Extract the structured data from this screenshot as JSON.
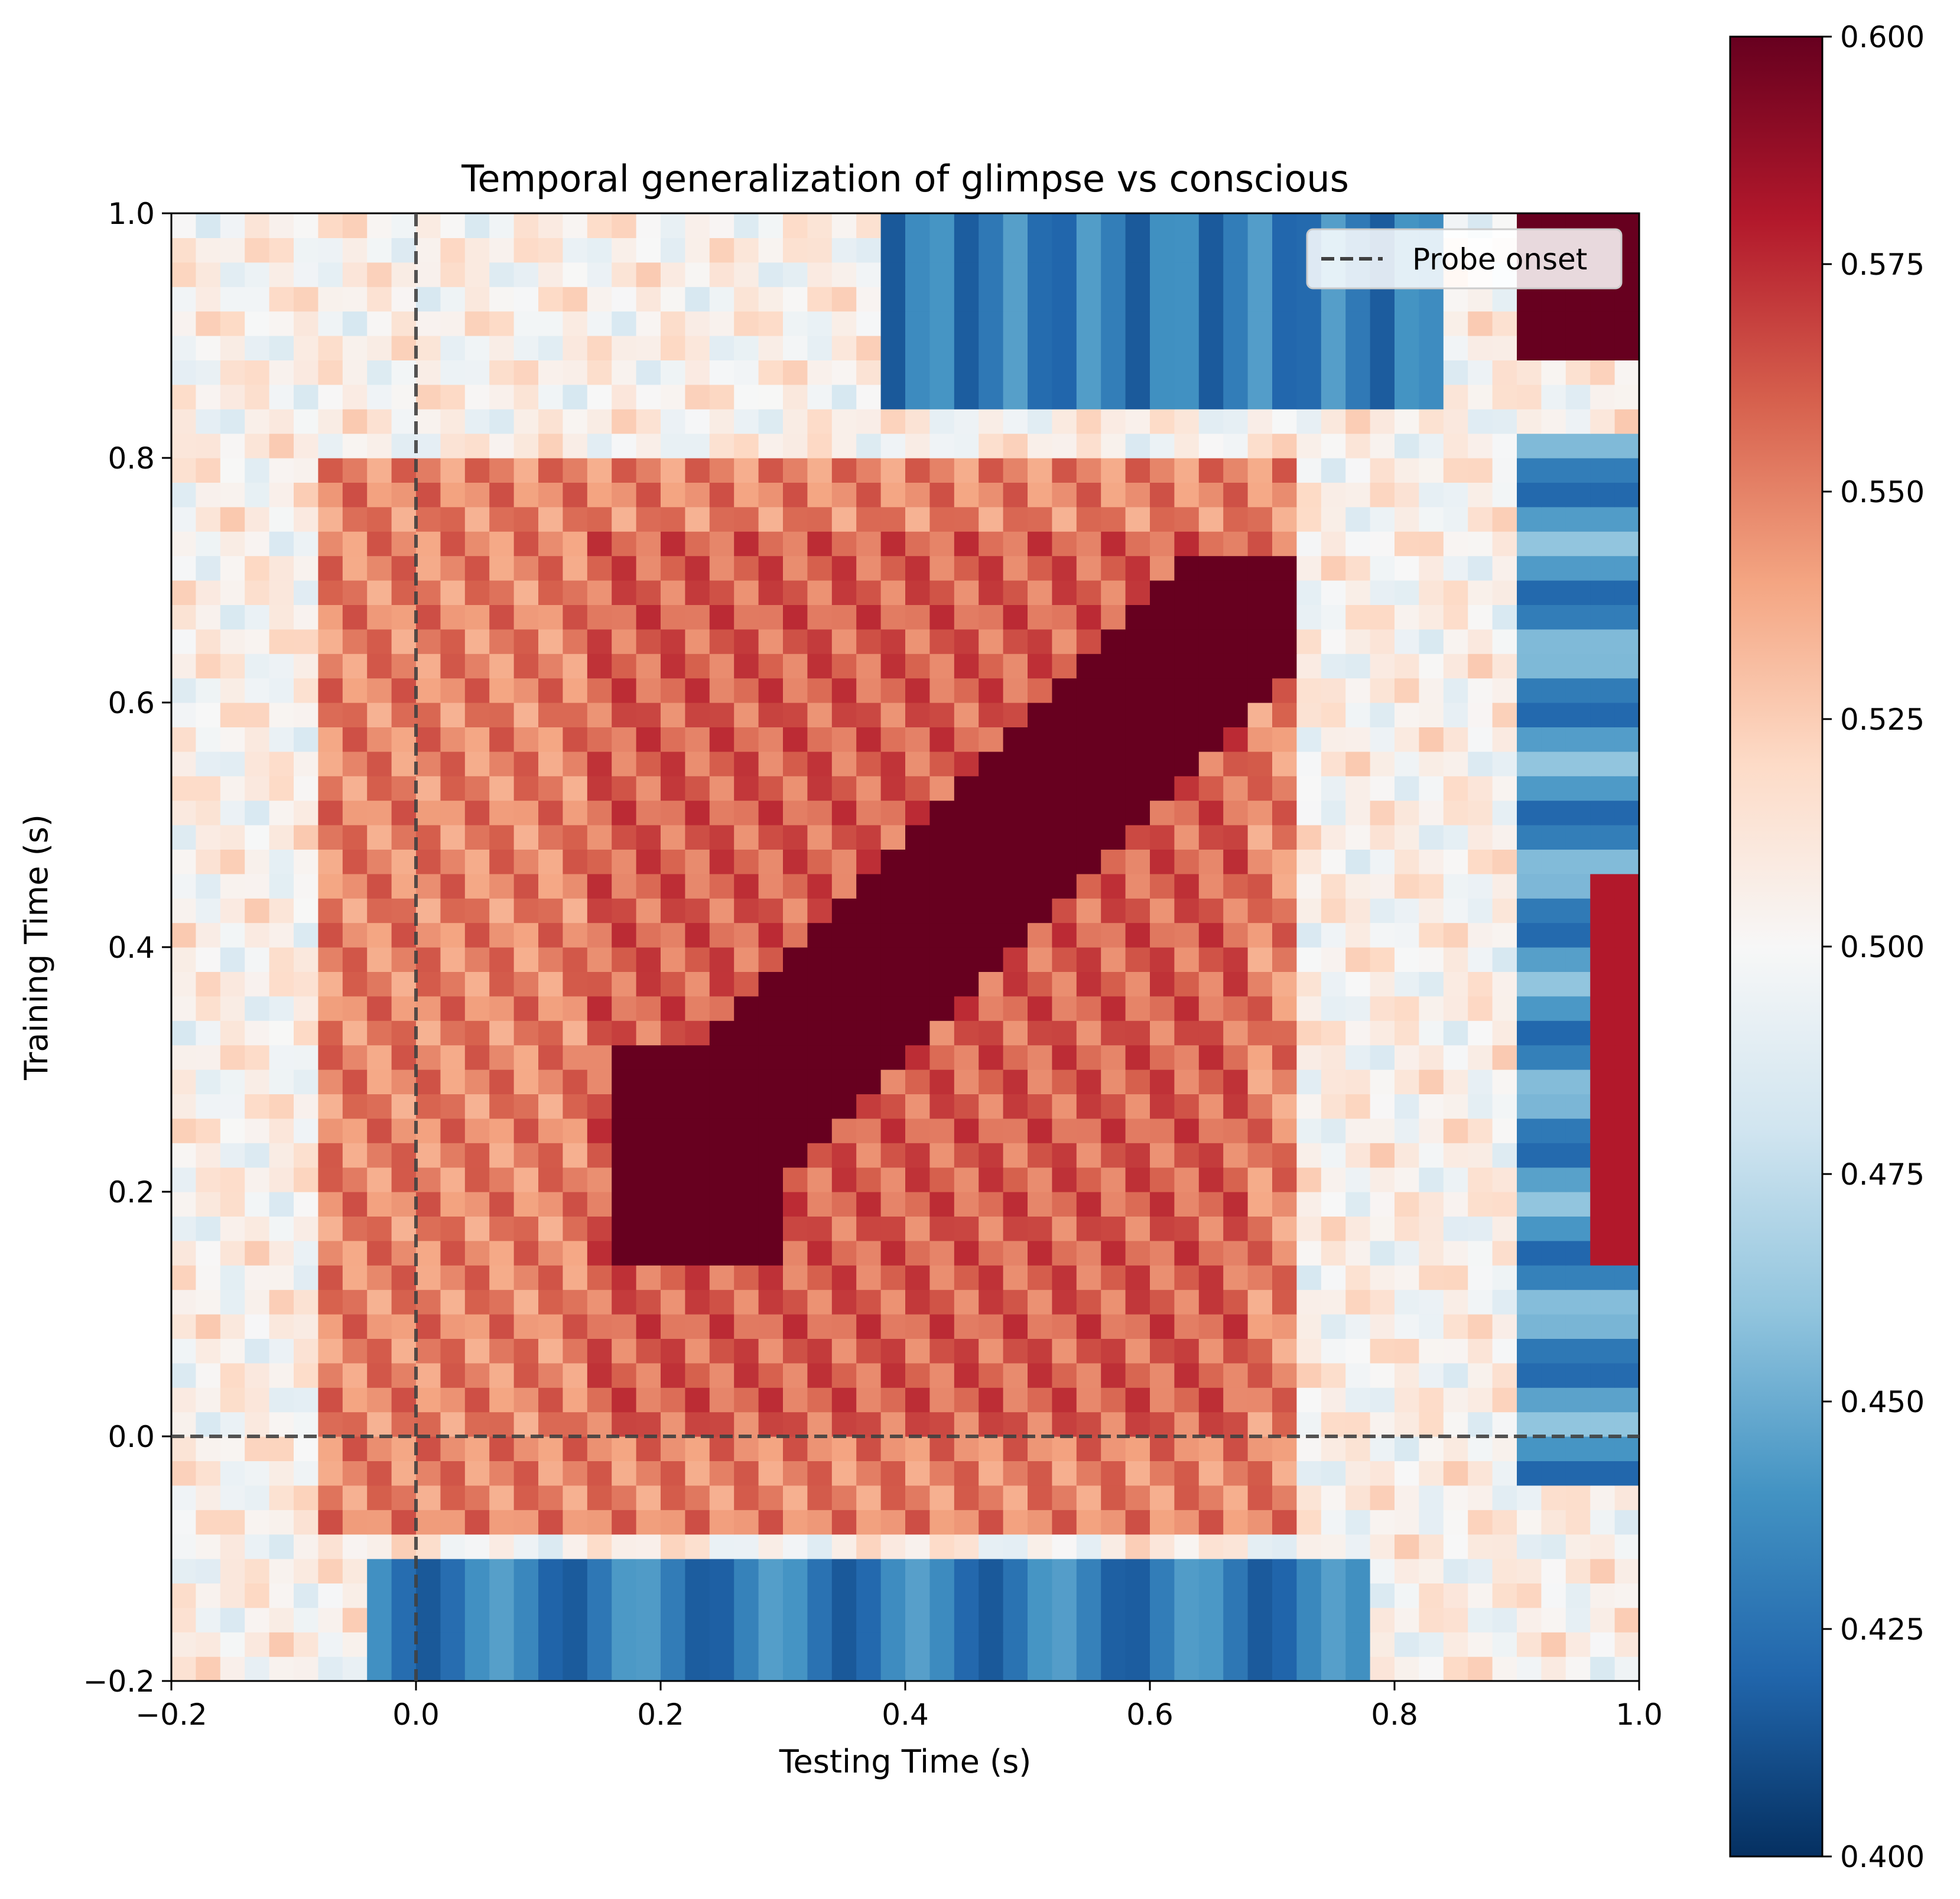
{
  "chart_data": {
    "type": "heatmap",
    "title": "Temporal generalization of glimpse vs conscious",
    "xlabel": "Testing Time (s)",
    "ylabel": "Training Time (s)",
    "xlim": [
      -0.2,
      1.0
    ],
    "ylim": [
      -0.2,
      1.0
    ],
    "xticks": [
      "−0.2",
      "0.0",
      "0.2",
      "0.4",
      "0.6",
      "0.8",
      "1.0"
    ],
    "yticks": [
      "−0.2",
      "0.0",
      "0.2",
      "0.4",
      "0.6",
      "0.8",
      "1.0"
    ],
    "colorbar": {
      "colormap": "RdBu_r",
      "vmin": 0.4,
      "vmax": 0.6,
      "ticks": [
        "0.400",
        "0.425",
        "0.450",
        "0.475",
        "0.500",
        "0.525",
        "0.550",
        "0.575",
        "0.600"
      ]
    },
    "reference_lines": [
      {
        "orientation": "vertical",
        "x": 0.0,
        "style": "dashed",
        "color": "#404040"
      },
      {
        "orientation": "horizontal",
        "y": 0.0,
        "style": "dashed",
        "color": "#404040"
      }
    ],
    "legend": {
      "placement": "top-right",
      "entries": [
        {
          "label": "Probe onset",
          "style": "dashed",
          "color": "#404040"
        }
      ]
    },
    "summary_values": {
      "diagonal_peak_score": 0.6,
      "diagonal_peak_range": [
        0.17,
        0.72
      ],
      "sustained_square_range": [
        0.0,
        0.72
      ],
      "sustained_square_score": 0.57,
      "negative_band_training_range": [
        -0.2,
        -0.1
      ],
      "negative_band_score": 0.43,
      "negative_band_top_training_range": [
        0.85,
        1.0
      ],
      "negative_band_top_score": 0.43,
      "negative_band_right_testing_range": [
        0.9,
        1.0
      ],
      "negative_band_right_score": 0.44,
      "top_right_corner_score": 0.6
    }
  }
}
